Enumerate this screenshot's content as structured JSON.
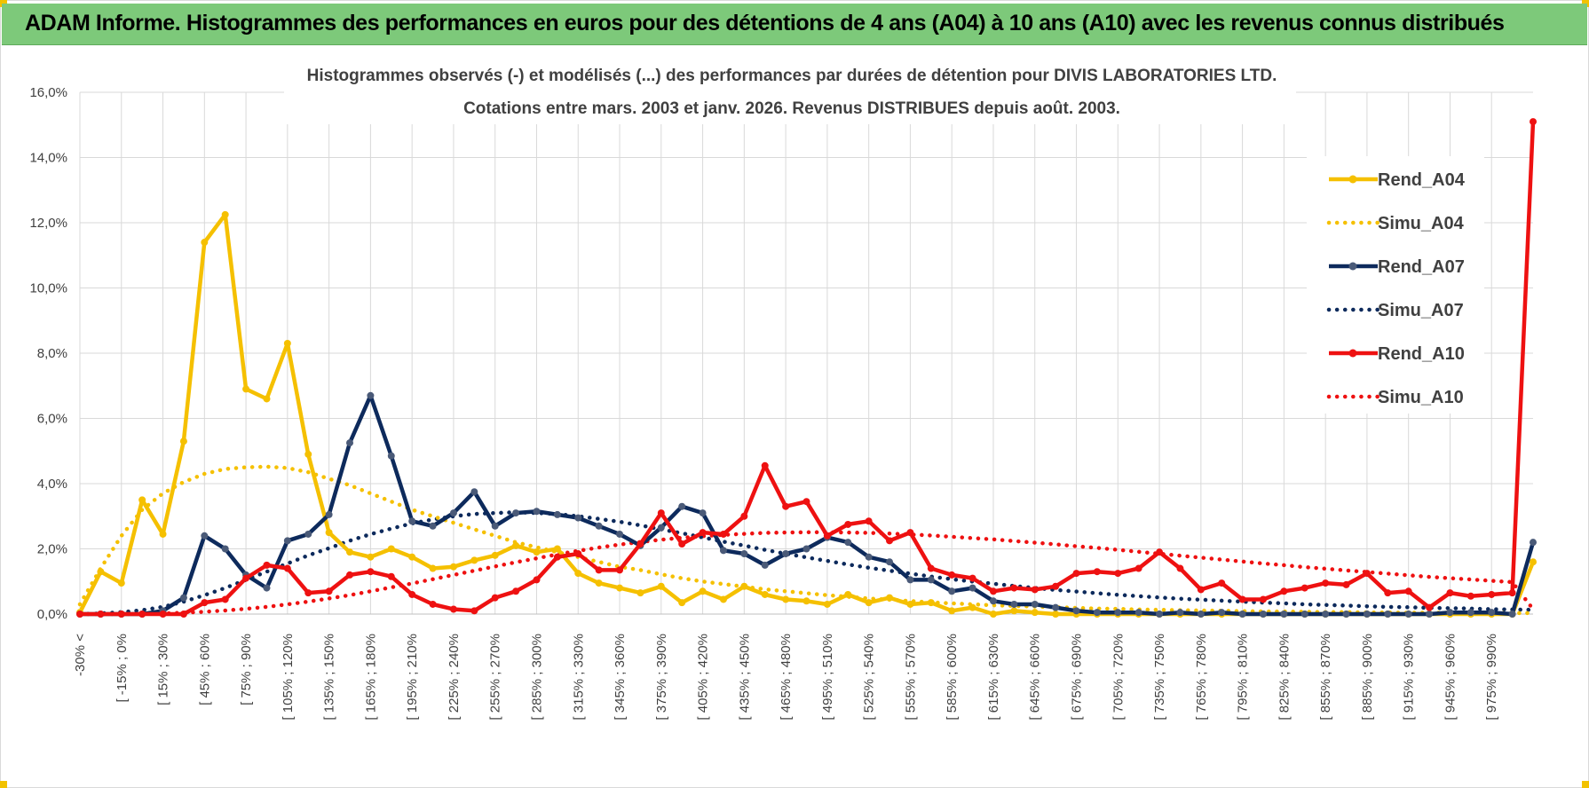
{
  "header": {
    "title": "ADAM Informe. Histogrammes des performances en euros pour des détentions de 4 ans (A04) à 10 ans (A10) avec les revenus connus distribués"
  },
  "colors": {
    "banner": "#7dc97a",
    "a04": "#f5c000",
    "a07": "#0d2a5c",
    "a10": "#ee1111",
    "grid": "#d9d9d9",
    "text": "#404040"
  },
  "chart_data": {
    "type": "line",
    "title": "Histogrammes observés (-) et modélisés (...) des performances par durées de détention pour DIVIS LABORATORIES LTD.",
    "subtitle": "Cotations entre mars. 2003 et janv. 2026. Revenus DISTRIBUES depuis août. 2003.",
    "xlabel": "",
    "ylabel": "",
    "ylim": [
      0,
      16
    ],
    "yticks": [
      "0,0%",
      "2,0%",
      "4,0%",
      "6,0%",
      "8,0%",
      "10,0%",
      "12,0%",
      "14,0%",
      "16,0%"
    ],
    "legend_position": "top-right",
    "xtick_labels": [
      "-30% <",
      "[ -15% ; 0%",
      "[ 15% ; 30%",
      "[ 45% ; 60%",
      "[ 75% ; 90%",
      "[ 105% ; 120%",
      "[ 135% ; 150%",
      "[ 165% ; 180%",
      "[ 195% ; 210%",
      "[ 225% ; 240%",
      "[ 255% ; 270%",
      "[ 285% ; 300%",
      "[ 315% ; 330%",
      "[ 345% ; 360%",
      "[ 375% ; 390%",
      "[ 405% ; 420%",
      "[ 435% ; 450%",
      "[ 465% ; 480%",
      "[ 495% ; 510%",
      "[ 525% ; 540%",
      "[ 555% ; 570%",
      "[ 585% ; 600%",
      "[ 615% ; 630%",
      "[ 645% ; 660%",
      "[ 675% ; 690%",
      "[ 705% ; 720%",
      "[ 735% ; 750%",
      "[ 765% ; 780%",
      "[ 795% ; 810%",
      "[ 825% ; 840%",
      "[ 855% ; 870%",
      "[ 885% ; 900%",
      "[ 915% ; 930%",
      "[ 945% ; 960%",
      "[ 975% ; 990%"
    ],
    "xtick_positions": [
      0,
      2,
      4,
      6,
      8,
      10,
      12,
      14,
      16,
      18,
      20,
      22,
      24,
      26,
      28,
      30,
      32,
      34,
      36,
      38,
      40,
      42,
      44,
      46,
      48,
      50,
      52,
      54,
      56,
      58,
      60,
      62,
      64,
      66,
      68
    ],
    "n_bins": 71,
    "series": [
      {
        "name": "Rend_A04",
        "style": "solid",
        "color": "#f5c000",
        "values": [
          0.05,
          1.3,
          0.95,
          3.5,
          2.45,
          5.3,
          11.4,
          12.25,
          6.9,
          6.6,
          8.3,
          4.9,
          2.5,
          1.9,
          1.75,
          2.0,
          1.75,
          1.4,
          1.45,
          1.65,
          1.8,
          2.1,
          1.9,
          2.0,
          1.25,
          0.95,
          0.8,
          0.65,
          0.85,
          0.35,
          0.7,
          0.45,
          0.85,
          0.6,
          0.45,
          0.4,
          0.3,
          0.6,
          0.35,
          0.5,
          0.3,
          0.35,
          0.1,
          0.2,
          0.0,
          0.1,
          0.05,
          0.0,
          0.0,
          0.0,
          0.0,
          0.0,
          0.0,
          0.0,
          0.0,
          0.0,
          0.0,
          0.0,
          0.0,
          0.0,
          0.0,
          0.0,
          0.0,
          0.0,
          0.0,
          0.0,
          0.0,
          0.0,
          0.0,
          0.0,
          1.6
        ]
      },
      {
        "name": "Simu_A04",
        "style": "dotted",
        "color": "#f5c000",
        "values": [
          0.3,
          1.4,
          2.4,
          3.2,
          3.7,
          4.05,
          4.3,
          4.45,
          4.5,
          4.52,
          4.48,
          4.35,
          4.15,
          3.95,
          3.7,
          3.45,
          3.2,
          3.0,
          2.8,
          2.6,
          2.4,
          2.2,
          2.05,
          1.9,
          1.75,
          1.6,
          1.45,
          1.35,
          1.22,
          1.1,
          1.0,
          0.92,
          0.84,
          0.76,
          0.7,
          0.64,
          0.58,
          0.53,
          0.48,
          0.44,
          0.4,
          0.36,
          0.33,
          0.3,
          0.27,
          0.25,
          0.23,
          0.21,
          0.19,
          0.17,
          0.16,
          0.14,
          0.13,
          0.12,
          0.11,
          0.1,
          0.09,
          0.08,
          0.08,
          0.07,
          0.06,
          0.06,
          0.05,
          0.05,
          0.04,
          0.04,
          0.04,
          0.03,
          0.03,
          0.03,
          0.03
        ]
      },
      {
        "name": "Rend_A07",
        "style": "solid",
        "color": "#0d2a5c",
        "values": [
          0.0,
          0.0,
          0.0,
          0.0,
          0.1,
          0.5,
          2.4,
          2.0,
          1.2,
          0.8,
          2.25,
          2.45,
          3.05,
          5.25,
          6.7,
          4.85,
          2.85,
          2.7,
          3.1,
          3.75,
          2.7,
          3.1,
          3.15,
          3.05,
          2.95,
          2.7,
          2.45,
          2.1,
          2.65,
          3.3,
          3.1,
          1.95,
          1.85,
          1.5,
          1.85,
          2.0,
          2.35,
          2.2,
          1.75,
          1.6,
          1.05,
          1.05,
          0.7,
          0.8,
          0.4,
          0.3,
          0.3,
          0.2,
          0.1,
          0.05,
          0.05,
          0.05,
          0.0,
          0.05,
          0.0,
          0.05,
          0.0,
          0.0,
          0.0,
          0.0,
          0.0,
          0.0,
          0.0,
          0.0,
          0.0,
          0.0,
          0.05,
          0.05,
          0.05,
          0.0,
          2.2
        ]
      },
      {
        "name": "Simu_A07",
        "style": "dotted",
        "color": "#0d2a5c",
        "values": [
          0.0,
          0.02,
          0.06,
          0.12,
          0.22,
          0.38,
          0.58,
          0.8,
          1.05,
          1.3,
          1.55,
          1.8,
          2.02,
          2.25,
          2.45,
          2.62,
          2.78,
          2.9,
          3.0,
          3.07,
          3.1,
          3.12,
          3.1,
          3.07,
          3.0,
          2.92,
          2.83,
          2.72,
          2.6,
          2.48,
          2.35,
          2.22,
          2.1,
          1.97,
          1.85,
          1.74,
          1.63,
          1.52,
          1.42,
          1.33,
          1.24,
          1.15,
          1.07,
          1.0,
          0.93,
          0.86,
          0.8,
          0.74,
          0.69,
          0.64,
          0.59,
          0.55,
          0.51,
          0.47,
          0.44,
          0.41,
          0.38,
          0.35,
          0.33,
          0.3,
          0.28,
          0.26,
          0.24,
          0.22,
          0.21,
          0.19,
          0.18,
          0.17,
          0.15,
          0.14,
          0.13
        ]
      },
      {
        "name": "Rend_A10",
        "style": "solid",
        "color": "#ee1111",
        "values": [
          0.0,
          0.0,
          0.0,
          0.0,
          0.0,
          0.0,
          0.35,
          0.45,
          1.1,
          1.5,
          1.4,
          0.65,
          0.7,
          1.2,
          1.3,
          1.15,
          0.6,
          0.3,
          0.15,
          0.1,
          0.5,
          0.7,
          1.05,
          1.75,
          1.85,
          1.35,
          1.35,
          2.15,
          3.1,
          2.15,
          2.5,
          2.45,
          3.0,
          4.55,
          3.3,
          3.45,
          2.4,
          2.75,
          2.85,
          2.25,
          2.5,
          1.4,
          1.2,
          1.1,
          0.7,
          0.8,
          0.75,
          0.85,
          1.25,
          1.3,
          1.25,
          1.4,
          1.9,
          1.4,
          0.75,
          0.95,
          0.45,
          0.45,
          0.7,
          0.8,
          0.95,
          0.9,
          1.25,
          0.65,
          0.7,
          0.2,
          0.65,
          0.55,
          0.6,
          0.65,
          15.1
        ]
      },
      {
        "name": "Simu_A10",
        "style": "dotted",
        "color": "#ee1111",
        "values": [
          0.0,
          0.0,
          0.0,
          0.01,
          0.02,
          0.04,
          0.07,
          0.11,
          0.16,
          0.22,
          0.3,
          0.38,
          0.48,
          0.58,
          0.7,
          0.82,
          0.94,
          1.07,
          1.2,
          1.33,
          1.46,
          1.59,
          1.71,
          1.83,
          1.94,
          2.04,
          2.13,
          2.21,
          2.28,
          2.34,
          2.39,
          2.43,
          2.46,
          2.49,
          2.5,
          2.51,
          2.51,
          2.5,
          2.49,
          2.47,
          2.44,
          2.41,
          2.37,
          2.33,
          2.29,
          2.24,
          2.19,
          2.14,
          2.08,
          2.03,
          1.97,
          1.91,
          1.85,
          1.79,
          1.73,
          1.67,
          1.61,
          1.55,
          1.5,
          1.44,
          1.39,
          1.34,
          1.29,
          1.24,
          1.19,
          1.14,
          1.1,
          1.06,
          1.02,
          0.98,
          0.15
        ]
      }
    ]
  }
}
